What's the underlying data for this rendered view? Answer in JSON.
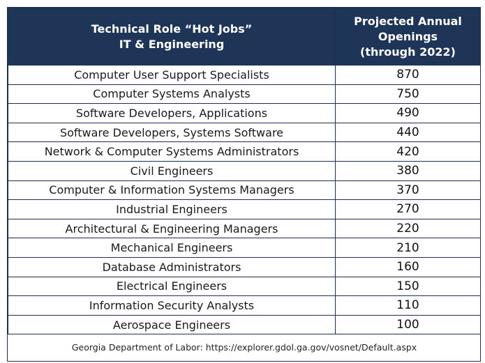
{
  "header": {
    "col1_line1": "Technical Role “Hot Jobs”",
    "col1_line2": "IT & Engineering",
    "col2_line1": "Projected Annual",
    "col2_line2": "Openings",
    "col2_line3": "(through 2022)"
  },
  "rows": [
    {
      "role": "Computer User Support Specialists",
      "openings": "870"
    },
    {
      "role": "Computer Systems Analysts",
      "openings": "750"
    },
    {
      "role": "Software Developers, Applications",
      "openings": "490"
    },
    {
      "role": "Software Developers, Systems Software",
      "openings": "440"
    },
    {
      "role": "Network & Computer Systems Administrators",
      "openings": "420"
    },
    {
      "role": "Civil Engineers",
      "openings": "380"
    },
    {
      "role": "Computer & Information Systems Managers",
      "openings": "370"
    },
    {
      "role": "Industrial Engineers",
      "openings": "270"
    },
    {
      "role": "Architectural & Engineering Managers",
      "openings": "220"
    },
    {
      "role": "Mechanical Engineers",
      "openings": "210"
    },
    {
      "role": "Database Administrators",
      "openings": "160"
    },
    {
      "role": "Electrical Engineers",
      "openings": "150"
    },
    {
      "role": "Information Security Analysts",
      "openings": "110"
    },
    {
      "role": "Aerospace Engineers",
      "openings": "100"
    }
  ],
  "footer": {
    "source": "Georgia Department of Labor: https://explorer.gdol.ga.gov/vosnet/Default.aspx"
  },
  "colors": {
    "header_bg": "#1f3558",
    "border": "#1f2f4f"
  }
}
